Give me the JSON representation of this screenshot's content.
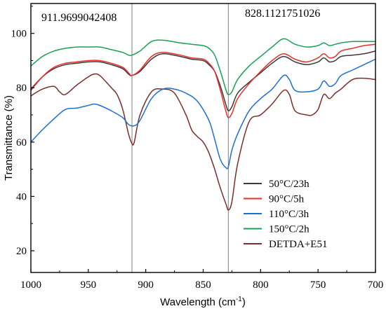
{
  "chart_data": {
    "type": "line",
    "xlabel": "Wavelength (cm",
    "xlabel_sup": "-1",
    "xlabel_end": ")",
    "ylabel": "Transmittance (%)",
    "xlim": [
      1000,
      700
    ],
    "ylim": [
      12,
      111
    ],
    "x_reversed": true,
    "xticks": [
      1000,
      950,
      900,
      850,
      800,
      750,
      700
    ],
    "yticks": [
      20,
      40,
      60,
      80,
      100
    ],
    "grid": false,
    "legend_position": "bottom-right",
    "reference_lines": [
      {
        "x": 911.9699042408,
        "label": "911.9699042408",
        "color": "#808080"
      },
      {
        "x": 828.1121751026,
        "label": "828.1121751026",
        "color": "#808080"
      }
    ],
    "series": [
      {
        "name": "50°C/23h",
        "color": "#3a3a3a",
        "x": [
          1000,
          990,
          980,
          970,
          960,
          950,
          940,
          930,
          920,
          915,
          912,
          905,
          895,
          885,
          870,
          860,
          850,
          845,
          840,
          835,
          830,
          828,
          825,
          820,
          810,
          800,
          790,
          780,
          770,
          760,
          750,
          745,
          740,
          735,
          730,
          720,
          710,
          700
        ],
        "y": [
          79.5,
          84,
          87,
          88.5,
          89,
          89.5,
          89.5,
          88.5,
          87,
          85,
          84.5,
          86,
          90.5,
          92.5,
          91.5,
          90.5,
          90,
          88.5,
          86,
          80.5,
          73.5,
          71.5,
          73,
          78,
          82,
          85.5,
          89,
          91.5,
          89.5,
          88.5,
          89.5,
          91,
          89.5,
          90,
          91.5,
          92,
          92.5,
          93.5
        ]
      },
      {
        "name": "90°C/5h",
        "color": "#e8302a",
        "x": [
          1000,
          990,
          980,
          970,
          960,
          950,
          940,
          930,
          920,
          915,
          912,
          905,
          895,
          885,
          870,
          860,
          850,
          845,
          840,
          835,
          830,
          828,
          825,
          820,
          810,
          800,
          790,
          780,
          770,
          760,
          750,
          745,
          740,
          735,
          730,
          720,
          710,
          700
        ],
        "y": [
          79,
          84,
          87.5,
          89,
          89.5,
          90,
          90,
          89,
          87.5,
          85.5,
          84.5,
          86.5,
          91.5,
          93,
          92,
          91,
          90.5,
          89,
          86,
          79,
          71,
          69,
          70.5,
          76,
          81.5,
          86,
          90,
          92.5,
          90.5,
          89.5,
          91,
          92.5,
          91,
          91.5,
          93.5,
          94.5,
          95.5,
          96
        ]
      },
      {
        "name": "110°C/3h",
        "color": "#1f6fd1",
        "x": [
          1000,
          990,
          980,
          970,
          960,
          950,
          945,
          940,
          930,
          920,
          915,
          910,
          905,
          895,
          885,
          875,
          865,
          855,
          845,
          840,
          835,
          830,
          828,
          825,
          820,
          810,
          800,
          790,
          780,
          775,
          770,
          760,
          750,
          745,
          740,
          735,
          730,
          720,
          710,
          700
        ],
        "y": [
          60,
          64.5,
          68.5,
          72,
          72.5,
          73.5,
          74,
          73.5,
          71.5,
          69,
          66.5,
          66,
          68,
          76,
          79.5,
          79.5,
          78,
          75,
          68,
          61,
          53.5,
          50.5,
          51,
          57,
          63,
          71.5,
          76,
          79.5,
          84.5,
          83,
          79,
          78.5,
          79.5,
          82.5,
          80.5,
          81.5,
          84.5,
          86.5,
          88.5,
          90.5
        ]
      },
      {
        "name": "150°C/2h",
        "color": "#1aa055",
        "x": [
          1000,
          990,
          980,
          970,
          960,
          950,
          940,
          930,
          920,
          915,
          912,
          905,
          895,
          885,
          870,
          860,
          850,
          845,
          840,
          835,
          830,
          828,
          825,
          820,
          810,
          800,
          790,
          780,
          770,
          760,
          750,
          745,
          740,
          735,
          730,
          720,
          710,
          700
        ],
        "y": [
          88,
          91.5,
          93.5,
          94.5,
          95,
          95,
          95,
          94,
          93,
          92,
          92,
          93.5,
          97,
          97.5,
          96.5,
          96,
          95.5,
          94.5,
          92,
          86,
          79,
          77.5,
          78.5,
          83,
          88,
          91.5,
          95,
          98,
          96,
          95,
          95.5,
          96.5,
          95.5,
          96,
          96.5,
          97,
          97,
          97
        ]
      },
      {
        "name": "DETDA+E51",
        "color": "#7b2e2b",
        "x": [
          1000,
          990,
          980,
          975,
          970,
          960,
          950,
          945,
          940,
          930,
          925,
          920,
          915,
          912,
          910,
          905,
          895,
          885,
          875,
          865,
          860,
          855,
          850,
          845,
          840,
          835,
          830,
          828,
          825,
          820,
          810,
          800,
          790,
          780,
          775,
          770,
          760,
          755,
          750,
          745,
          740,
          735,
          730,
          720,
          710,
          700
        ],
        "y": [
          77,
          79.5,
          80.5,
          78.5,
          77.5,
          81,
          84,
          85,
          84.5,
          80,
          77.5,
          72,
          63,
          59.5,
          60,
          70,
          78.5,
          79.5,
          78,
          70,
          64.5,
          62,
          60,
          56,
          50,
          43,
          37,
          35,
          38,
          52,
          67.5,
          70,
          74,
          79,
          77.5,
          71.5,
          70,
          70,
          72,
          77.5,
          76,
          78,
          79.5,
          83,
          83.5,
          83
        ]
      }
    ]
  }
}
